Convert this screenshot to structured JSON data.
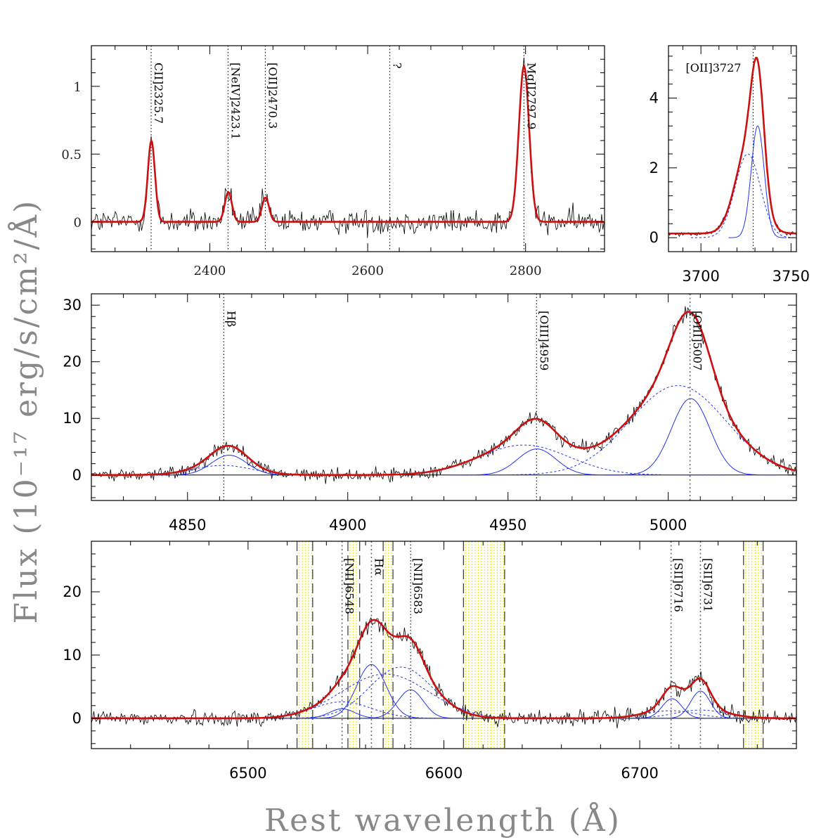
{
  "figure": {
    "xlabel": "Rest wavelength (Å)",
    "ylabel": "Flux (10⁻¹⁷ erg/s/cm²/Å)"
  },
  "chart_data": [
    {
      "id": "uv",
      "type": "line",
      "xlim": [
        2250,
        2900
      ],
      "ylim": [
        -0.22,
        1.3
      ],
      "xticks": [
        2400,
        2600,
        2800
      ],
      "yticks": [
        0,
        0.5,
        1
      ],
      "ytick_labels": [
        "0",
        "0.5",
        "1"
      ],
      "xtick_labels": [
        "2400",
        "2600",
        "2800"
      ],
      "series": [
        {
          "name": "observed",
          "noise": 0.07
        },
        {
          "name": "fit",
          "baseline": 0
        }
      ],
      "components": [
        {
          "center": 2326.0,
          "sigma": 4.5,
          "amp": 0.6,
          "in_fit": true
        },
        {
          "center": 2423.5,
          "sigma": 4.5,
          "amp": 0.22,
          "in_fit": true
        },
        {
          "center": 2470.5,
          "sigma": 4.5,
          "amp": 0.18,
          "in_fit": true
        },
        {
          "center": 2798.0,
          "sigma": 6.5,
          "amp": 1.15,
          "in_fit": true
        }
      ],
      "lines": [
        {
          "x": 2325.7,
          "label": "CII]2325.7"
        },
        {
          "x": 2423.1,
          "label": "[NeIV]2423.1"
        },
        {
          "x": 2470.3,
          "label": "[OII]2470.3"
        },
        {
          "x": 2628.0,
          "label": "?"
        },
        {
          "x": 2797.9,
          "label": "MgII2797.9"
        }
      ]
    },
    {
      "id": "oii",
      "type": "line",
      "xlim": [
        3682,
        3753
      ],
      "ylim": [
        -0.4,
        5.5
      ],
      "xticks": [
        3700,
        3750
      ],
      "yticks": [
        0,
        2,
        4
      ],
      "ytick_labels": [
        "0",
        "2",
        "4"
      ],
      "xtick_labels": [
        "3700",
        "3750"
      ],
      "series": [
        {
          "name": "observed",
          "noise": 0.06
        },
        {
          "name": "fit",
          "baseline": 0.12
        }
      ],
      "components": [
        {
          "center": 3731.5,
          "sigma": 3.6,
          "amp": 3.2,
          "in_fit": true,
          "style": "solid"
        },
        {
          "center": 3726.0,
          "sigma": 7.0,
          "amp": 2.4,
          "in_fit": true,
          "style": "dashed"
        }
      ],
      "lines": [
        {
          "x": 3729.0,
          "label": "[OII]3727",
          "horizontal": true
        }
      ]
    },
    {
      "id": "oiii",
      "type": "line",
      "xlim": [
        4820,
        5040
      ],
      "ylim": [
        -4.5,
        32
      ],
      "xticks": [
        4850,
        4900,
        4950,
        5000
      ],
      "yticks": [
        0,
        10,
        20,
        30
      ],
      "ytick_labels": [
        "0",
        "10",
        "20",
        "30"
      ],
      "xtick_labels": [
        "4850",
        "4900",
        "4950",
        "5000"
      ],
      "series": [
        {
          "name": "observed",
          "noise": 1.2
        },
        {
          "name": "fit",
          "baseline": 0
        }
      ],
      "components": [
        {
          "center": 4863.0,
          "sigma": 5.5,
          "amp": 3.5,
          "in_fit": true,
          "style": "solid"
        },
        {
          "center": 4861.0,
          "sigma": 9.0,
          "amp": 1.7,
          "in_fit": true,
          "style": "dashed"
        },
        {
          "center": 4959.0,
          "sigma": 6.0,
          "amp": 4.6,
          "in_fit": true,
          "style": "solid"
        },
        {
          "center": 4955.0,
          "sigma": 14.0,
          "amp": 5.3,
          "in_fit": true,
          "style": "dashed"
        },
        {
          "center": 5007.0,
          "sigma": 6.0,
          "amp": 13.5,
          "in_fit": true,
          "style": "solid"
        },
        {
          "center": 5003.0,
          "sigma": 15.0,
          "amp": 15.8,
          "in_fit": true,
          "style": "dashed"
        }
      ],
      "lines": [
        {
          "x": 4861.3,
          "label": "Hβ"
        },
        {
          "x": 4958.9,
          "label": "[OIII]4959"
        },
        {
          "x": 5006.8,
          "label": "[OIII]5007",
          "grey": true
        }
      ]
    },
    {
      "id": "ha",
      "type": "line",
      "xlim": [
        6420,
        6780
      ],
      "ylim": [
        -4.8,
        28
      ],
      "xticks": [
        6500,
        6600,
        6700
      ],
      "yticks": [
        0,
        10,
        20
      ],
      "ytick_labels": [
        "0",
        "10",
        "20"
      ],
      "xtick_labels": [
        "6500",
        "6600",
        "6700"
      ],
      "series": [
        {
          "name": "observed",
          "noise": 1.2
        },
        {
          "name": "fit",
          "baseline": 0
        }
      ],
      "components": [
        {
          "center": 6548.0,
          "sigma": 6.5,
          "amp": 1.5,
          "in_fit": true,
          "style": "solid"
        },
        {
          "center": 6548.0,
          "sigma": 15.0,
          "amp": 2.6,
          "in_fit": true,
          "style": "dashed"
        },
        {
          "center": 6563.0,
          "sigma": 7.5,
          "amp": 8.5,
          "in_fit": true,
          "style": "solid"
        },
        {
          "center": 6570.0,
          "sigma": 22.0,
          "amp": 7.0,
          "in_fit": false,
          "style": "dashed"
        },
        {
          "center": 6578.0,
          "sigma": 16.0,
          "amp": 8.1,
          "in_fit": true,
          "style": "dashed"
        },
        {
          "center": 6583.0,
          "sigma": 6.5,
          "amp": 4.5,
          "in_fit": true,
          "style": "solid"
        },
        {
          "center": 6716.5,
          "sigma": 5.0,
          "amp": 3.1,
          "in_fit": true,
          "style": "solid"
        },
        {
          "center": 6731.0,
          "sigma": 5.0,
          "amp": 4.3,
          "in_fit": true,
          "style": "solid"
        },
        {
          "center": 6716.0,
          "sigma": 13.0,
          "amp": 1.2,
          "in_fit": true,
          "style": "dashed"
        },
        {
          "center": 6731.0,
          "sigma": 13.0,
          "amp": 1.3,
          "in_fit": true,
          "style": "dashed"
        }
      ],
      "lines": [
        {
          "x": 6548.0,
          "label": "[NII]6548",
          "grey": true
        },
        {
          "x": 6563.0,
          "label": "Hα",
          "grey": true
        },
        {
          "x": 6583.0,
          "label": "[NII]6583"
        },
        {
          "x": 6716.0,
          "label": "[SII]6716",
          "grey": true
        },
        {
          "x": 6731.0,
          "label": "[SII]6731",
          "grey": true
        }
      ],
      "masks": [
        [
          6525,
          6533
        ],
        [
          6551,
          6557
        ],
        [
          6569,
          6574
        ],
        [
          6610,
          6631
        ],
        [
          6753,
          6763
        ]
      ]
    }
  ]
}
